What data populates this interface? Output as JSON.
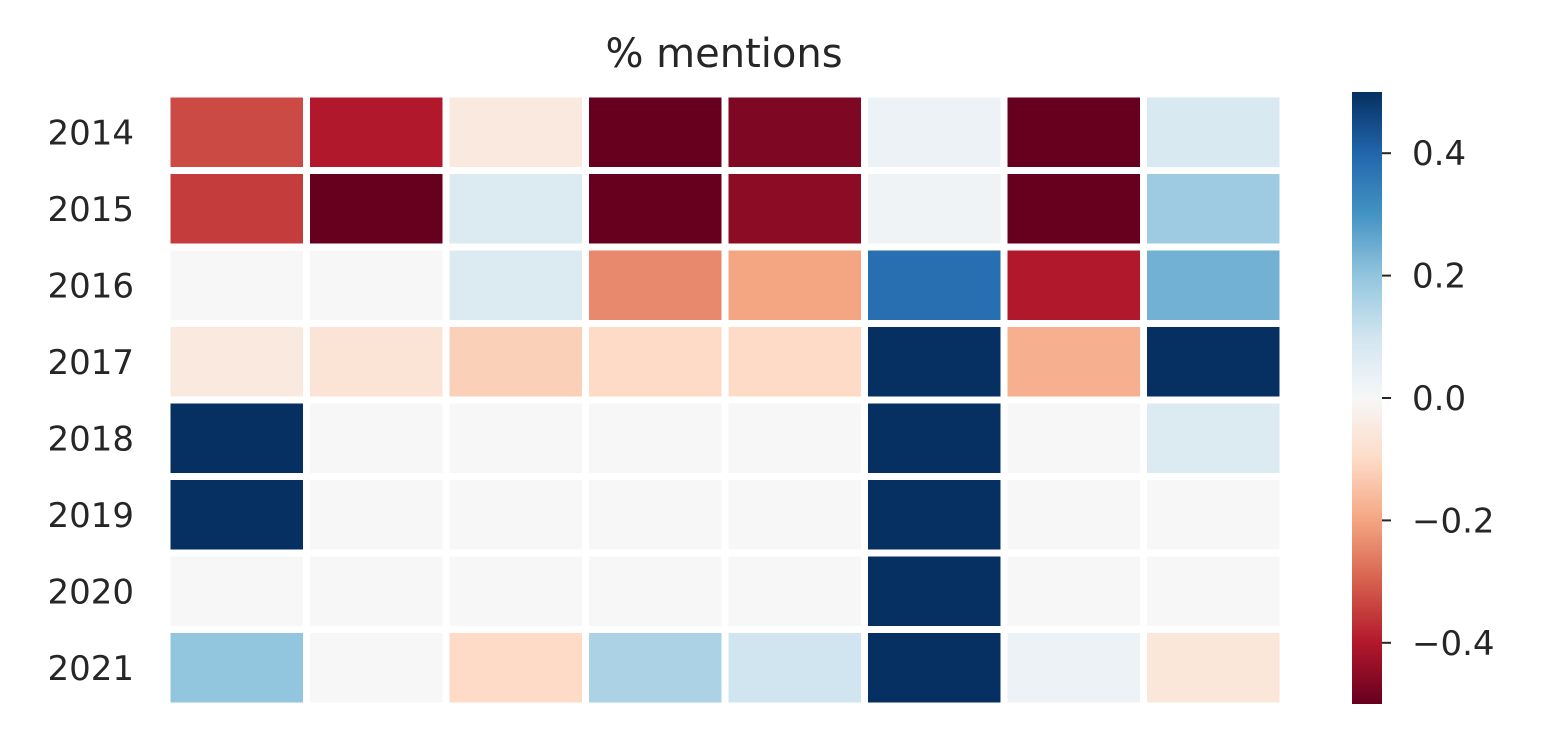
{
  "chart_data": {
    "type": "heatmap",
    "title": "% mentions",
    "xlabel": "",
    "ylabel": "",
    "rows": [
      "2014",
      "2015",
      "2016",
      "2017",
      "2018",
      "2019",
      "2020",
      "2021"
    ],
    "column_count": 8,
    "values": [
      [
        -0.33,
        -0.4,
        -0.05,
        -0.5,
        -0.47,
        0.03,
        -0.5,
        0.08
      ],
      [
        -0.35,
        -0.5,
        0.07,
        -0.5,
        -0.45,
        0.02,
        -0.5,
        0.18
      ],
      [
        0.0,
        0.0,
        0.07,
        -0.24,
        -0.2,
        0.38,
        -0.4,
        0.24
      ],
      [
        -0.05,
        -0.07,
        -0.12,
        -0.1,
        -0.1,
        0.5,
        -0.18,
        0.5
      ],
      [
        0.5,
        0.0,
        0.0,
        0.0,
        0.0,
        0.5,
        0.0,
        0.07
      ],
      [
        0.5,
        0.0,
        0.0,
        0.0,
        0.0,
        0.5,
        0.0,
        0.0
      ],
      [
        0.0,
        0.0,
        0.0,
        0.0,
        0.0,
        0.5,
        0.0,
        0.0
      ],
      [
        0.2,
        0.0,
        -0.1,
        0.16,
        0.1,
        0.5,
        0.03,
        -0.06
      ]
    ],
    "colormap": "RdBu",
    "vmin": -0.5,
    "vmax": 0.5,
    "colorbar_ticks": [
      0.4,
      0.2,
      0.0,
      -0.2,
      -0.4
    ],
    "colorbar_tick_labels": [
      "0.4",
      "0.2",
      "0.0",
      "−0.2",
      "−0.4"
    ],
    "grid": false,
    "cell_gap_color": "#ffffff"
  }
}
